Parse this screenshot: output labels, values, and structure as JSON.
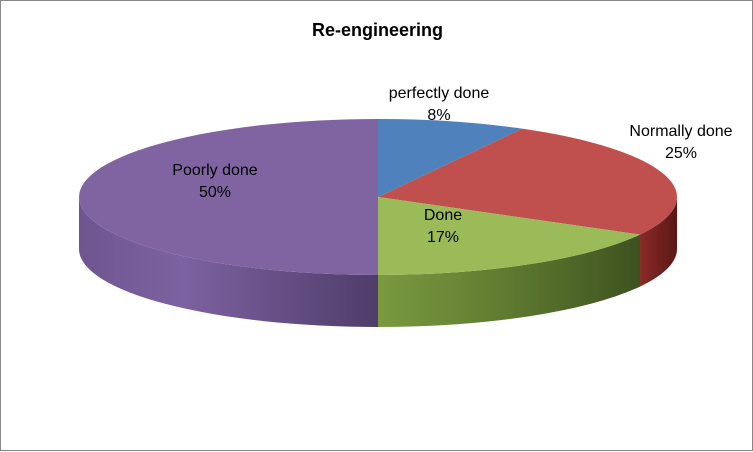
{
  "chart_data": {
    "type": "pie",
    "title": "Re-engineering",
    "slices": [
      {
        "label": "perfectly done",
        "value": 8,
        "display": "8%",
        "color": "#4f81bd"
      },
      {
        "label": "Normally done",
        "value": 25,
        "display": "25%",
        "color": "#c0504d"
      },
      {
        "label": "Done",
        "value": 17,
        "display": "17%",
        "color": "#9bbb59"
      },
      {
        "label": "Poorly done",
        "value": 50,
        "display": "50%",
        "color": "#8064a2"
      }
    ],
    "style": "3d",
    "legend": "none"
  }
}
